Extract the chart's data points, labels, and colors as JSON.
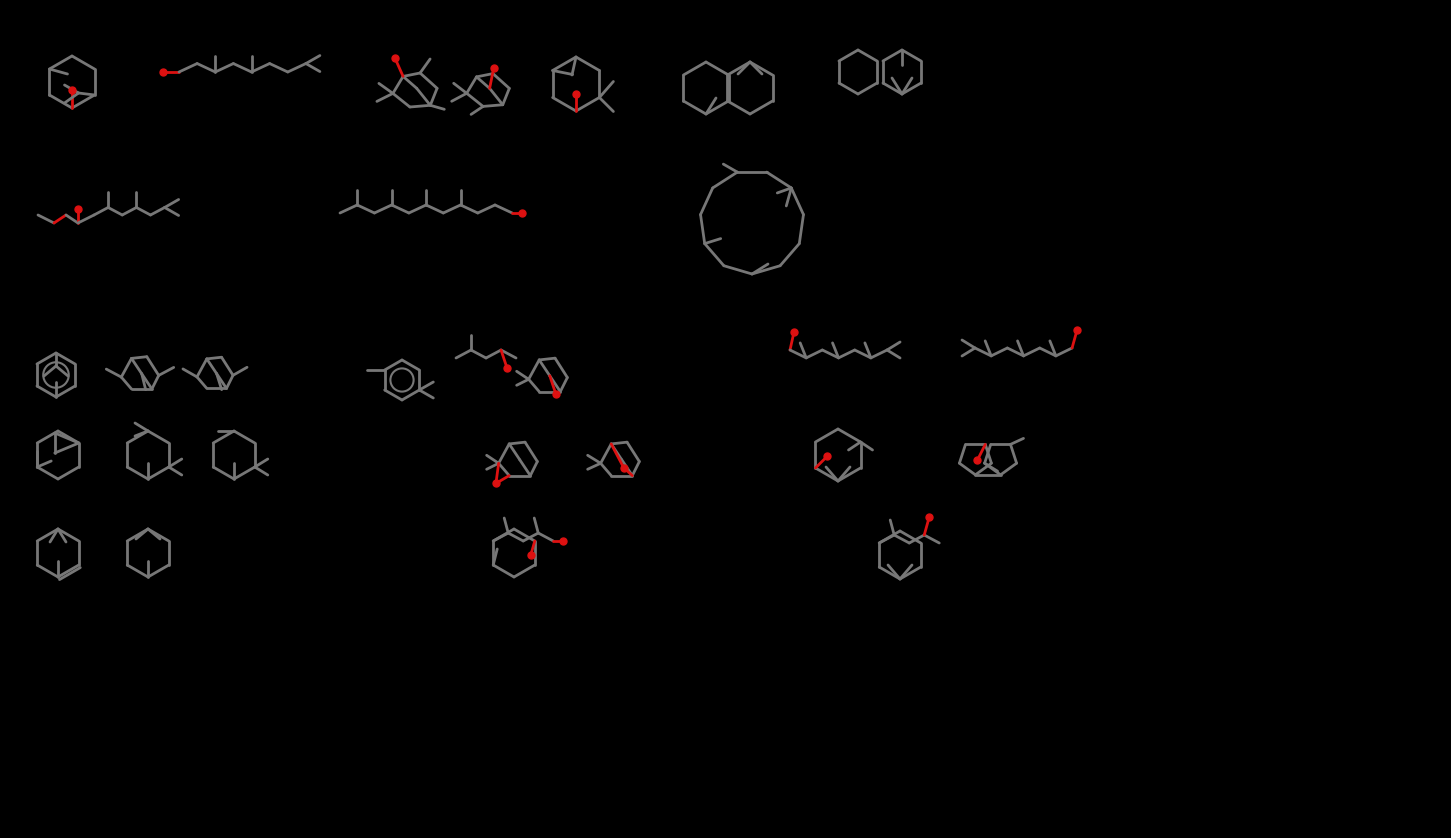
{
  "bg": "#000000",
  "lc": "#777777",
  "oc": "#dd1111",
  "lw": 2.0,
  "figsize": [
    14.51,
    8.38
  ],
  "dpi": 100
}
